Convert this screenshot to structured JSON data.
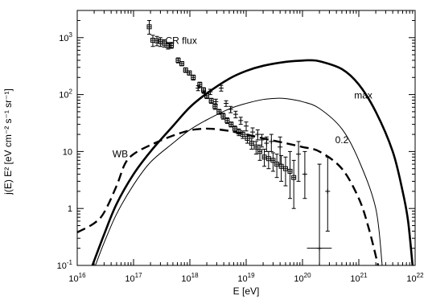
{
  "chart_data": {
    "type": "line",
    "xlabel": "E [eV]",
    "ylabel": "j(E) E² [eV cm⁻² s⁻¹ sr⁻¹]",
    "x_scale": "log",
    "y_scale": "log",
    "xlim": [
      1e+16,
      1e+22
    ],
    "ylim": [
      0.1,
      3000
    ],
    "x_ticks": [
      {
        "value": 1e+16,
        "base": "10",
        "exp": "16"
      },
      {
        "value": 1e+17,
        "base": "10",
        "exp": "17"
      },
      {
        "value": 1e+18,
        "base": "10",
        "exp": "18"
      },
      {
        "value": 1e+19,
        "base": "10",
        "exp": "19"
      },
      {
        "value": 1e+20,
        "base": "10",
        "exp": "20"
      },
      {
        "value": 1e+21,
        "base": "10",
        "exp": "21"
      },
      {
        "value": 1e+22,
        "base": "10",
        "exp": "22"
      }
    ],
    "y_ticks": [
      {
        "value": 0.1,
        "base": "10",
        "exp": "-1"
      },
      {
        "value": 1,
        "base": "1",
        "exp": ""
      },
      {
        "value": 10,
        "base": "10",
        "exp": ""
      },
      {
        "value": 100,
        "base": "10",
        "exp": "2"
      },
      {
        "value": 1000,
        "base": "10",
        "exp": "3"
      }
    ],
    "series": [
      {
        "name": "max",
        "style": "thick-solid",
        "points": [
          [
            1.86e+16,
            0.1
          ],
          [
            3e+16,
            0.35
          ],
          [
            5e+16,
            1.2
          ],
          [
            1e+17,
            4
          ],
          [
            2e+17,
            10
          ],
          [
            5e+17,
            28
          ],
          [
            1e+18,
            60
          ],
          [
            2e+18,
            105
          ],
          [
            5e+18,
            190
          ],
          [
            1e+19,
            260
          ],
          [
            2e+19,
            320
          ],
          [
            5e+19,
            375
          ],
          [
            1e+20,
            395
          ],
          [
            1.3e+20,
            400
          ],
          [
            2e+20,
            385
          ],
          [
            5e+20,
            280
          ],
          [
            1e+21,
            150
          ],
          [
            2e+21,
            50
          ],
          [
            4e+21,
            10
          ],
          [
            6e+21,
            2
          ],
          [
            7.5e+21,
            0.6
          ],
          [
            9e+21,
            0.1
          ]
        ]
      },
      {
        "name": "0.2",
        "style": "thin-solid",
        "points": [
          [
            2.1e+16,
            0.1
          ],
          [
            3e+16,
            0.25
          ],
          [
            5e+16,
            0.8
          ],
          [
            1e+17,
            2.6
          ],
          [
            2e+17,
            6.5
          ],
          [
            5e+17,
            14
          ],
          [
            1e+18,
            24
          ],
          [
            2e+18,
            36
          ],
          [
            5e+18,
            56
          ],
          [
            1e+19,
            70
          ],
          [
            2e+19,
            82
          ],
          [
            3.5e+19,
            86
          ],
          [
            5e+19,
            85
          ],
          [
            1e+20,
            75
          ],
          [
            2e+20,
            57
          ],
          [
            5e+20,
            25
          ],
          [
            1e+21,
            7
          ],
          [
            2e+21,
            1
          ],
          [
            2.6e+21,
            0.1
          ]
        ]
      },
      {
        "name": "WB",
        "style": "dashed",
        "points": [
          [
            1e+16,
            0.38
          ],
          [
            2e+16,
            0.55
          ],
          [
            3e+16,
            0.85
          ],
          [
            5e+16,
            2.5
          ],
          [
            7e+16,
            6
          ],
          [
            1e+17,
            9
          ],
          [
            2e+17,
            13
          ],
          [
            5e+17,
            19
          ],
          [
            1e+18,
            23.5
          ],
          [
            1.6e+18,
            25
          ],
          [
            2.5e+18,
            25
          ],
          [
            5e+18,
            23
          ],
          [
            1e+19,
            20
          ],
          [
            2e+19,
            17
          ],
          [
            5e+19,
            14
          ],
          [
            1e+20,
            12
          ],
          [
            2e+20,
            10
          ],
          [
            5e+20,
            5
          ],
          [
            1e+21,
            1.5
          ],
          [
            1.5e+21,
            0.45
          ],
          [
            2.2e+21,
            0.1
          ]
        ]
      }
    ],
    "cr_flux": {
      "name": "CR flux",
      "boxed_points": [
        {
          "x": 1.9e+17,
          "y": 1550,
          "yerr_low": 1150,
          "yerr_high": 2000
        },
        {
          "x": 2.2e+17,
          "y": 900,
          "yerr_low": 700,
          "yerr_high": 1100
        },
        {
          "x": 2.6e+17,
          "y": 880,
          "yerr_low": 720,
          "yerr_high": 1050
        },
        {
          "x": 3e+17,
          "y": 850,
          "yerr_low": 700,
          "yerr_high": 1000
        },
        {
          "x": 3.5e+17,
          "y": 800,
          "yerr_low": 680,
          "yerr_high": 920
        },
        {
          "x": 4.1e+17,
          "y": 720,
          "yerr_low": 630,
          "yerr_high": 820
        },
        {
          "x": 4.7e+17,
          "y": 730,
          "yerr_low": 650,
          "yerr_high": 820
        },
        {
          "x": 6.2e+17,
          "y": 400,
          "yerr_low": 360,
          "yerr_high": 440
        },
        {
          "x": 7.2e+17,
          "y": 350,
          "yerr_low": 320,
          "yerr_high": 380
        },
        {
          "x": 8.4e+17,
          "y": 270,
          "yerr_low": 245,
          "yerr_high": 295
        },
        {
          "x": 9.8e+17,
          "y": 240,
          "yerr_low": 220,
          "yerr_high": 260
        },
        {
          "x": 1.15e+18,
          "y": 200,
          "yerr_low": 180,
          "yerr_high": 220
        },
        {
          "x": 1.5e+18,
          "y": 150,
          "yerr_low": 135,
          "yerr_high": 165
        },
        {
          "x": 1.75e+18,
          "y": 120,
          "yerr_low": 108,
          "yerr_high": 132
        },
        {
          "x": 2e+18,
          "y": 95,
          "yerr_low": 85,
          "yerr_high": 105
        },
        {
          "x": 2.4e+18,
          "y": 78,
          "yerr_low": 70,
          "yerr_high": 86
        },
        {
          "x": 2.8e+18,
          "y": 62,
          "yerr_low": 55,
          "yerr_high": 69
        },
        {
          "x": 3.3e+18,
          "y": 50,
          "yerr_low": 45,
          "yerr_high": 55
        },
        {
          "x": 3.9e+18,
          "y": 42,
          "yerr_low": 37,
          "yerr_high": 47
        },
        {
          "x": 4.6e+18,
          "y": 35,
          "yerr_low": 31,
          "yerr_high": 39
        },
        {
          "x": 5.4e+18,
          "y": 30,
          "yerr_low": 27,
          "yerr_high": 33
        },
        {
          "x": 6.3e+18,
          "y": 25,
          "yerr_low": 22,
          "yerr_high": 28
        },
        {
          "x": 7.4e+18,
          "y": 22,
          "yerr_low": 19,
          "yerr_high": 25
        },
        {
          "x": 8.7e+18,
          "y": 20,
          "yerr_low": 17,
          "yerr_high": 23
        },
        {
          "x": 1.05e+19,
          "y": 17,
          "yerr_low": 14,
          "yerr_high": 20
        },
        {
          "x": 1.25e+19,
          "y": 14,
          "yerr_low": 11,
          "yerr_high": 17
        },
        {
          "x": 1.5e+19,
          "y": 12,
          "yerr_low": 9,
          "yerr_high": 15
        },
        {
          "x": 1.75e+19,
          "y": 10,
          "yerr_low": 7,
          "yerr_high": 13
        },
        {
          "x": 2.1e+19,
          "y": 8,
          "yerr_low": 5.5,
          "yerr_high": 11
        },
        {
          "x": 2.5e+19,
          "y": 7.5,
          "yerr_low": 5,
          "yerr_high": 10
        },
        {
          "x": 3e+19,
          "y": 7,
          "yerr_low": 4.5,
          "yerr_high": 9.5
        },
        {
          "x": 3.5e+19,
          "y": 6,
          "yerr_low": 3.5,
          "yerr_high": 9
        },
        {
          "x": 4.2e+19,
          "y": 5.5,
          "yerr_low": 3,
          "yerr_high": 8.5
        },
        {
          "x": 5e+19,
          "y": 5,
          "yerr_low": 2.5,
          "yerr_high": 8
        },
        {
          "x": 6e+19,
          "y": 4.5,
          "yerr_low": 1.5,
          "yerr_high": 10
        },
        {
          "x": 7e+19,
          "y": 3.5,
          "yerr_low": 1,
          "yerr_high": 7
        }
      ],
      "cross_points": [
        {
          "x": 1.4e+18,
          "y": 130,
          "yerr_low": 117,
          "yerr_high": 143
        },
        {
          "x": 1.8e+18,
          "y": 105,
          "yerr_low": 95,
          "yerr_high": 115
        },
        {
          "x": 2.3e+18,
          "y": 112,
          "yerr_low": 100,
          "yerr_high": 124
        },
        {
          "x": 2.9e+18,
          "y": 75,
          "yerr_low": 67,
          "yerr_high": 83
        },
        {
          "x": 3.6e+18,
          "y": 130,
          "yerr_low": 115,
          "yerr_high": 145
        },
        {
          "x": 4.4e+18,
          "y": 70,
          "yerr_low": 62,
          "yerr_high": 78
        },
        {
          "x": 5.3e+18,
          "y": 55,
          "yerr_low": 48,
          "yerr_high": 62
        },
        {
          "x": 6.5e+18,
          "y": 45,
          "yerr_low": 39,
          "yerr_high": 51
        },
        {
          "x": 8e+18,
          "y": 35,
          "yerr_low": 30,
          "yerr_high": 40
        },
        {
          "x": 1e+19,
          "y": 28,
          "yerr_low": 23,
          "yerr_high": 33
        },
        {
          "x": 1.3e+19,
          "y": 22,
          "yerr_low": 18,
          "yerr_high": 26
        },
        {
          "x": 1.6e+19,
          "y": 20,
          "yerr_low": 16,
          "yerr_high": 24
        },
        {
          "x": 1.9e+19,
          "y": 16,
          "yerr_low": 12,
          "yerr_high": 20
        },
        {
          "x": 2.3e+19,
          "y": 14,
          "yerr_low": 10,
          "yerr_high": 18
        },
        {
          "x": 2.8e+19,
          "y": 15,
          "yerr_low": 10,
          "yerr_high": 20
        },
        {
          "x": 4e+19,
          "y": 12,
          "yerr_low": 6,
          "yerr_high": 18
        },
        {
          "x": 8.5e+19,
          "y": 9,
          "yerr_low": 3,
          "yerr_high": 15
        },
        {
          "x": 1.1e+20,
          "y": 4,
          "yerr_low": 1.5,
          "yerr_high": 10
        },
        {
          "x": 2e+20,
          "y": 0.2,
          "yerr_low": 0.1,
          "yerr_high": 6,
          "xerr_low": 1.2e+20,
          "xerr_high": 3.3e+20
        },
        {
          "x": 2.8e+20,
          "y": 2,
          "yerr_low": 0.4,
          "yerr_high": 8
        }
      ]
    },
    "annotations": [
      {
        "text": "CR flux",
        "x": 7e+17,
        "y": 780
      },
      {
        "text": "max",
        "x": 1.2e+21,
        "y": 85
      },
      {
        "text": "0.2",
        "x": 5e+20,
        "y": 14
      },
      {
        "text": "WB",
        "x": 5.8e+16,
        "y": 8
      }
    ]
  }
}
